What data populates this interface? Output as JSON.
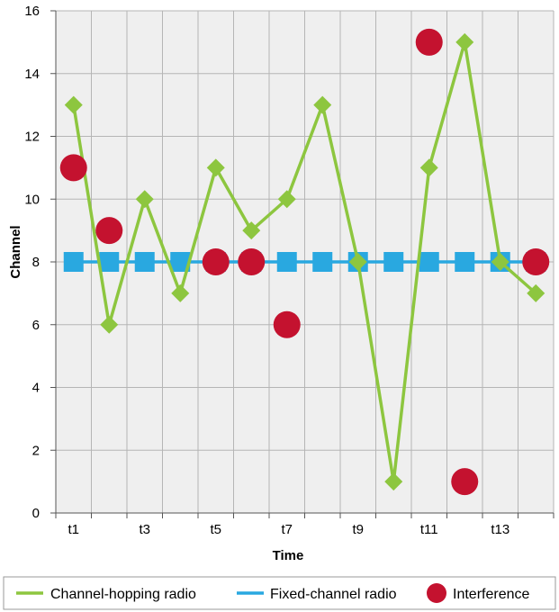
{
  "chart_data": {
    "type": "line",
    "title": "",
    "xlabel": "Time",
    "ylabel": "Channel",
    "ylim": [
      0,
      16
    ],
    "yticks": [
      0,
      2,
      4,
      6,
      8,
      10,
      12,
      14,
      16
    ],
    "xlim": [
      0.5,
      14.5
    ],
    "xticks": [
      {
        "x": 1,
        "label": "t1"
      },
      {
        "x": 3,
        "label": "t3"
      },
      {
        "x": 5,
        "label": "t5"
      },
      {
        "x": 7,
        "label": "t7"
      },
      {
        "x": 9,
        "label": "t9"
      },
      {
        "x": 11,
        "label": "t11"
      },
      {
        "x": 13,
        "label": "t13"
      }
    ],
    "grid": true,
    "legend_position": "bottom",
    "series": [
      {
        "name": "Channel-hopping radio",
        "color": "#8dc63f",
        "marker": "diamond",
        "line": true,
        "x": [
          1,
          2,
          3,
          4,
          5,
          6,
          7,
          8,
          9,
          10,
          11,
          12,
          13,
          14
        ],
        "y": [
          13,
          6,
          10,
          7,
          11,
          9,
          10,
          13,
          8,
          1,
          11,
          15,
          8,
          7
        ]
      },
      {
        "name": "Fixed-channel radio",
        "color": "#29a8e0",
        "marker": "square",
        "line": true,
        "x": [
          1,
          2,
          3,
          4,
          5,
          6,
          7,
          8,
          9,
          10,
          11,
          12,
          13,
          14
        ],
        "y": [
          8,
          8,
          8,
          8,
          8,
          8,
          8,
          8,
          8,
          8,
          8,
          8,
          8,
          8
        ]
      },
      {
        "name": "Interference",
        "color": "#c4122f",
        "marker": "circle",
        "line": false,
        "x": [
          1,
          2,
          5,
          6,
          7,
          11,
          12,
          14
        ],
        "y": [
          11,
          9,
          8,
          8,
          6,
          15,
          1,
          8
        ]
      }
    ]
  }
}
